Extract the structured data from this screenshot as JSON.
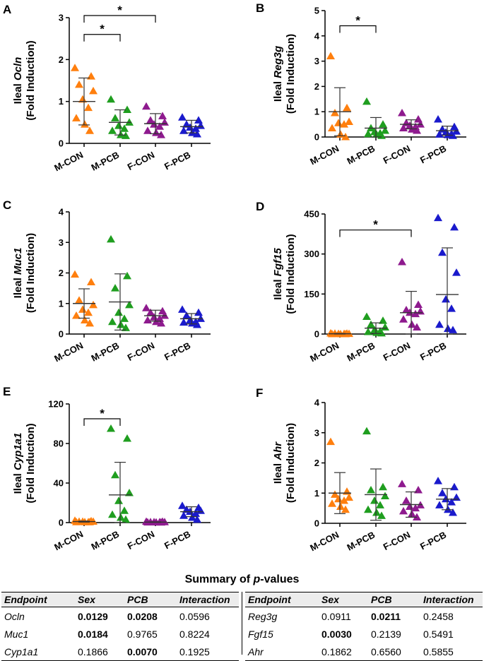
{
  "chart_data": [
    {
      "type": "scatter",
      "panel_letter": "A",
      "ylabel_line1_prefix": "Ileal ",
      "ylabel_gene": "Ocln",
      "ylabel_line2": "(Fold Induction)",
      "yticks": [
        "0",
        "1",
        "2",
        "3"
      ],
      "ylim": [
        0,
        3
      ],
      "categories": [
        "M-CON",
        "M-PCB",
        "F-CON",
        "F-PCB"
      ],
      "series": [
        {
          "name": "M-CON",
          "color": "#ff7f0e",
          "mean": 1.0,
          "sd": 0.56,
          "values": [
            1.8,
            1.6,
            1.4,
            1.25,
            1.05,
            0.85,
            0.6,
            0.45,
            0.3
          ]
        },
        {
          "name": "M-PCB",
          "color": "#1f9e1f",
          "mean": 0.5,
          "sd": 0.3,
          "values": [
            1.05,
            0.8,
            0.6,
            0.5,
            0.42,
            0.35,
            0.3,
            0.2,
            0.18
          ]
        },
        {
          "name": "F-CON",
          "color": "#8e1a8e",
          "mean": 0.47,
          "sd": 0.24,
          "values": [
            0.88,
            0.65,
            0.55,
            0.5,
            0.45,
            0.4,
            0.3,
            0.25,
            0.2
          ]
        },
        {
          "name": "F-PCB",
          "color": "#1a1acc",
          "mean": 0.4,
          "sd": 0.15,
          "values": [
            0.62,
            0.55,
            0.45,
            0.42,
            0.38,
            0.35,
            0.3,
            0.25,
            0.22
          ]
        }
      ],
      "significance": [
        {
          "from": 0,
          "to": 1,
          "y": 2.6,
          "label": "*"
        },
        {
          "from": 0,
          "to": 2,
          "y": 3.05,
          "label": "*"
        }
      ]
    },
    {
      "type": "scatter",
      "panel_letter": "B",
      "ylabel_line1_prefix": "Ileal ",
      "ylabel_gene": "Reg3g",
      "ylabel_line2": "(Fold Induction)",
      "yticks": [
        "0",
        "1",
        "2",
        "3",
        "4",
        "5"
      ],
      "ylim": [
        0,
        5
      ],
      "categories": [
        "M-CON",
        "M-PCB",
        "F-CON",
        "F-PCB"
      ],
      "series": [
        {
          "name": "M-CON",
          "color": "#ff7f0e",
          "mean": 1.0,
          "sd": 0.95,
          "values": [
            3.2,
            1.15,
            0.95,
            0.6,
            0.55,
            0.5,
            0.35,
            0.1,
            0.0
          ]
        },
        {
          "name": "M-PCB",
          "color": "#1f9e1f",
          "mean": 0.35,
          "sd": 0.42,
          "values": [
            1.4,
            0.5,
            0.35,
            0.25,
            0.2,
            0.15,
            0.12,
            0.1,
            0.05
          ]
        },
        {
          "name": "F-CON",
          "color": "#8e1a8e",
          "mean": 0.5,
          "sd": 0.18,
          "values": [
            0.95,
            0.7,
            0.55,
            0.5,
            0.45,
            0.4,
            0.35,
            0.3,
            0.25
          ]
        },
        {
          "name": "F-PCB",
          "color": "#1a1acc",
          "mean": 0.25,
          "sd": 0.18,
          "values": [
            0.7,
            0.4,
            0.3,
            0.22,
            0.18,
            0.12,
            0.1,
            0.08,
            0.05
          ]
        }
      ],
      "significance": [
        {
          "from": 0,
          "to": 1,
          "y": 4.4,
          "label": "*"
        }
      ]
    },
    {
      "type": "scatter",
      "panel_letter": "C",
      "ylabel_line1_prefix": "Ileal ",
      "ylabel_gene": "Muc1",
      "ylabel_line2": "(Fold Induction)",
      "yticks": [
        "0",
        "1",
        "2",
        "3",
        "4"
      ],
      "ylim": [
        0,
        4
      ],
      "categories": [
        "M-CON",
        "M-PCB",
        "F-CON",
        "F-PCB"
      ],
      "series": [
        {
          "name": "M-CON",
          "color": "#ff7f0e",
          "mean": 1.0,
          "sd": 0.48,
          "values": [
            1.95,
            1.7,
            1.1,
            0.95,
            0.8,
            0.7,
            0.6,
            0.45,
            0.35
          ]
        },
        {
          "name": "M-PCB",
          "color": "#1f9e1f",
          "mean": 1.05,
          "sd": 0.92,
          "values": [
            3.1,
            1.9,
            1.5,
            0.95,
            0.7,
            0.5,
            0.4,
            0.3,
            0.2
          ]
        },
        {
          "name": "F-CON",
          "color": "#8e1a8e",
          "mean": 0.6,
          "sd": 0.18,
          "values": [
            0.85,
            0.75,
            0.7,
            0.6,
            0.55,
            0.5,
            0.45,
            0.4,
            0.35
          ]
        },
        {
          "name": "F-PCB",
          "color": "#1a1acc",
          "mean": 0.5,
          "sd": 0.17,
          "values": [
            0.8,
            0.7,
            0.6,
            0.5,
            0.45,
            0.4,
            0.38,
            0.35,
            0.3
          ]
        }
      ],
      "significance": []
    },
    {
      "type": "scatter",
      "panel_letter": "D",
      "ylabel_line1_prefix": "Ileal ",
      "ylabel_gene": "Fgf15",
      "ylabel_line2": "(Fold Induction)",
      "yticks": [
        "0",
        "150",
        "300",
        "450"
      ],
      "ylim": [
        0,
        450
      ],
      "categories": [
        "M-CON",
        "M-PCB",
        "F-CON",
        "F-PCB"
      ],
      "series": [
        {
          "name": "M-CON",
          "color": "#ff7f0e",
          "mean": 1,
          "sd": 1,
          "values": [
            3,
            2,
            2,
            1,
            1,
            1,
            0,
            0,
            0
          ]
        },
        {
          "name": "M-PCB",
          "color": "#1f9e1f",
          "mean": 22,
          "sd": 20,
          "values": [
            65,
            50,
            35,
            25,
            15,
            10,
            8,
            5,
            3
          ]
        },
        {
          "name": "F-CON",
          "color": "#8e1a8e",
          "mean": 80,
          "sd": 80,
          "values": [
            270,
            110,
            90,
            85,
            80,
            75,
            55,
            35,
            25
          ]
        },
        {
          "name": "F-PCB",
          "color": "#1a1acc",
          "mean": 148,
          "sd": 175,
          "values": [
            435,
            400,
            305,
            230,
            130,
            95,
            35,
            20,
            15
          ]
        }
      ],
      "significance": [
        {
          "from": 0,
          "to": 2,
          "y": 390,
          "label": "*"
        }
      ]
    },
    {
      "type": "scatter",
      "panel_letter": "E",
      "ylabel_line1_prefix": "Ileal ",
      "ylabel_gene": "Cyp1a1",
      "ylabel_line2": "(Fold Induction)",
      "yticks": [
        "0",
        "40",
        "80",
        "120"
      ],
      "ylim": [
        0,
        120
      ],
      "categories": [
        "M-CON",
        "M-PCB",
        "F-CON",
        "F-PCB"
      ],
      "series": [
        {
          "name": "M-CON",
          "color": "#ff7f0e",
          "mean": 1,
          "sd": 0.5,
          "values": [
            2,
            1.5,
            1,
            1,
            1,
            0.5,
            0.5,
            0.5,
            0.5
          ]
        },
        {
          "name": "M-PCB",
          "color": "#1f9e1f",
          "mean": 28,
          "sd": 33,
          "values": [
            95,
            85,
            48,
            30,
            22,
            12,
            8,
            5,
            3
          ]
        },
        {
          "name": "F-CON",
          "color": "#8e1a8e",
          "mean": 0.5,
          "sd": 0.3,
          "values": [
            1,
            1,
            0.5,
            0.5,
            0.5,
            0.5,
            0.3,
            0.3,
            0.2
          ]
        },
        {
          "name": "F-PCB",
          "color": "#1a1acc",
          "mean": 11,
          "sd": 5,
          "values": [
            17,
            15,
            13,
            12,
            11,
            9,
            7,
            5,
            3
          ]
        }
      ],
      "significance": [
        {
          "from": 0,
          "to": 1,
          "y": 105,
          "label": "*"
        }
      ]
    },
    {
      "type": "scatter",
      "panel_letter": "F",
      "ylabel_line1_prefix": "Ileal ",
      "ylabel_gene": "Ahr",
      "ylabel_line2": "(Fold Induction)",
      "yticks": [
        "0",
        "1",
        "2",
        "3",
        "4"
      ],
      "ylim": [
        0,
        4
      ],
      "categories": [
        "M-CON",
        "M-PCB",
        "F-CON",
        "F-PCB"
      ],
      "series": [
        {
          "name": "M-CON",
          "color": "#ff7f0e",
          "mean": 1.0,
          "sd": 0.68,
          "values": [
            2.7,
            1.05,
            0.95,
            0.85,
            0.8,
            0.75,
            0.65,
            0.55,
            0.45
          ]
        },
        {
          "name": "M-PCB",
          "color": "#1f9e1f",
          "mean": 0.95,
          "sd": 0.85,
          "values": [
            3.05,
            1.2,
            1.1,
            0.9,
            0.75,
            0.6,
            0.45,
            0.35,
            0.25
          ]
        },
        {
          "name": "F-CON",
          "color": "#8e1a8e",
          "mean": 0.62,
          "sd": 0.42,
          "values": [
            1.3,
            1.1,
            0.75,
            0.6,
            0.55,
            0.5,
            0.4,
            0.3,
            0.2
          ]
        },
        {
          "name": "F-PCB",
          "color": "#1a1acc",
          "mean": 0.8,
          "sd": 0.35,
          "values": [
            1.4,
            1.2,
            1.0,
            0.85,
            0.8,
            0.7,
            0.6,
            0.45,
            0.35
          ]
        }
      ],
      "significance": []
    }
  ],
  "summary": {
    "title_prefix": "Summary of ",
    "title_italic": "p",
    "title_suffix": "-values",
    "headers": [
      "Endpoint",
      "Sex",
      "PCB",
      "Interaction"
    ],
    "left_rows": [
      {
        "endpoint": "Ocln",
        "sex": "0.0129",
        "pcb": "0.0208",
        "interaction": "0.0596"
      },
      {
        "endpoint": "Muc1",
        "sex": "0.0184",
        "pcb": "0.9765",
        "interaction": "0.8224"
      },
      {
        "endpoint": "Cyp1a1",
        "sex": "0.1866",
        "pcb": "0.0070",
        "interaction": "0.1925"
      }
    ],
    "right_rows": [
      {
        "endpoint": "Reg3g",
        "sex": "0.0911",
        "pcb": "0.0211",
        "interaction": "0.2458"
      },
      {
        "endpoint": "Fgf15",
        "sex": "0.0030",
        "pcb": "0.2139",
        "interaction": "0.5491"
      },
      {
        "endpoint": "Ahr",
        "sex": "0.1862",
        "pcb": "0.6560",
        "interaction": "0.5855"
      }
    ]
  }
}
